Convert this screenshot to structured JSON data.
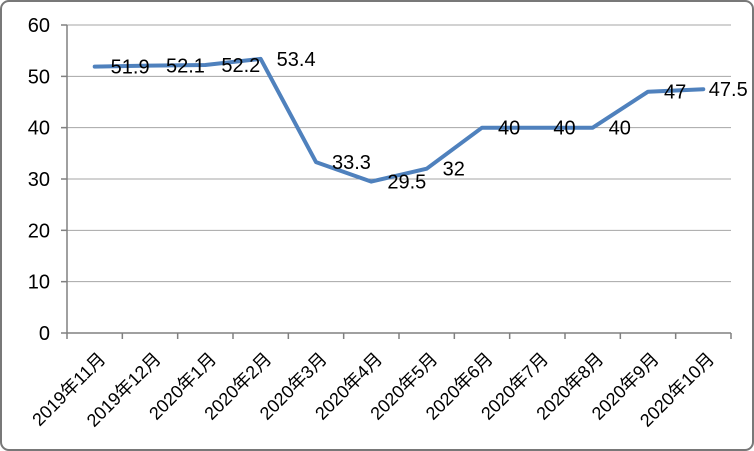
{
  "chart_data": {
    "type": "line",
    "categories": [
      "2019年11月",
      "2019年12月",
      "2020年1月",
      "2020年2月",
      "2020年3月",
      "2020年4月",
      "2020年5月",
      "2020年6月",
      "2020年7月",
      "2020年8月",
      "2020年9月",
      "2020年10月"
    ],
    "values": [
      51.9,
      52.1,
      52.2,
      53.4,
      33.3,
      29.5,
      32,
      40,
      40,
      40,
      47,
      47.5
    ],
    "data_labels": [
      "51.9",
      "52.1",
      "52.2",
      "53.4",
      "33.3",
      "29.5",
      "32",
      "40",
      "40",
      "40",
      "47",
      "47.5"
    ],
    "title": "",
    "xlabel": "",
    "ylabel": "",
    "ylim": [
      0,
      60
    ],
    "ytick_step": 10,
    "ytick_labels": [
      "0",
      "10",
      "20",
      "30",
      "40",
      "50",
      "60"
    ],
    "grid": true,
    "legend": "none",
    "line_color": "#4F81BD",
    "gridline_color": "#A6A6A6",
    "axis_color": "#808080",
    "text_color": "#000000",
    "background_color": "#FFFFFF",
    "border_color": "#787878"
  }
}
